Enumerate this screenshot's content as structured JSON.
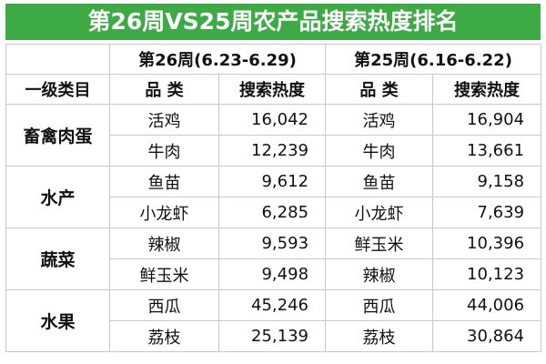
{
  "title": "第26周VS25周农产品搜索热度排名",
  "table": {
    "group_headers": [
      "第26周(6.23-6.29)",
      "第25周(6.16-6.22)"
    ],
    "columns": [
      "一级类目",
      "品 类",
      "搜索热度",
      "品 类",
      "搜索热度"
    ],
    "groups": [
      {
        "name": "畜禽肉蛋",
        "rows": [
          [
            "活鸡",
            "16,042",
            "活鸡",
            "16,904"
          ],
          [
            "牛肉",
            "12,239",
            "牛肉",
            "13,661"
          ]
        ]
      },
      {
        "name": "水产",
        "rows": [
          [
            "鱼苗",
            "9,612",
            "鱼苗",
            "9,158"
          ],
          [
            "小龙虾",
            "6,285",
            "小龙虾",
            "7,639"
          ]
        ]
      },
      {
        "name": "蔬菜",
        "rows": [
          [
            "辣椒",
            "9,593",
            "鲜玉米",
            "10,396"
          ],
          [
            "鲜玉米",
            "9,498",
            "辣椒",
            "10,123"
          ]
        ]
      },
      {
        "name": "水果",
        "rows": [
          [
            "西瓜",
            "45,246",
            "西瓜",
            "44,006"
          ],
          [
            "荔枝",
            "25,139",
            "荔枝",
            "30,864"
          ]
        ]
      }
    ]
  }
}
